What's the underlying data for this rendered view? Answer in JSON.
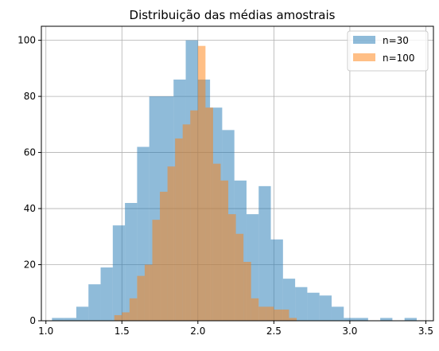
{
  "chart_data": {
    "type": "histogram",
    "title": "Distribuição das médias amostrais",
    "xlabel": "",
    "ylabel": "",
    "xlim": [
      0.97,
      3.55
    ],
    "ylim": [
      0,
      105
    ],
    "xticks": [
      1.0,
      1.5,
      2.0,
      2.5,
      3.0,
      3.5
    ],
    "xtick_labels": [
      "1.0",
      "1.5",
      "2.0",
      "2.5",
      "3.0",
      "3.5"
    ],
    "yticks": [
      0,
      20,
      40,
      60,
      80,
      100
    ],
    "ytick_labels": [
      "0",
      "20",
      "40",
      "60",
      "80",
      "100"
    ],
    "grid": true,
    "legend_position": "top-right",
    "series": [
      {
        "name": "n=30",
        "color": "#1f77b4",
        "alpha": 0.5,
        "bin_edges": [
          1.04,
          1.12,
          1.2,
          1.28,
          1.36,
          1.44,
          1.52,
          1.6,
          1.68,
          1.76,
          1.84,
          1.92,
          2.0,
          2.08,
          2.16,
          2.24,
          2.32,
          2.4,
          2.48,
          2.56,
          2.64,
          2.72,
          2.8,
          2.88,
          2.96,
          3.04,
          3.12,
          3.2,
          3.28,
          3.36,
          3.44,
          3.52
        ],
        "values": [
          1,
          1,
          5,
          13,
          19,
          34,
          42,
          62,
          80,
          80,
          86,
          100,
          86,
          76,
          68,
          50,
          38,
          48,
          29,
          15,
          12,
          10,
          9,
          5,
          1,
          1,
          0,
          1,
          0,
          1,
          0
        ]
      },
      {
        "name": "n=100",
        "color": "#ff7f0e",
        "alpha": 0.5,
        "bin_edges": [
          1.45,
          1.5,
          1.55,
          1.6,
          1.65,
          1.7,
          1.75,
          1.8,
          1.85,
          1.9,
          1.95,
          2.0,
          2.05,
          2.1,
          2.15,
          2.2,
          2.25,
          2.3,
          2.35,
          2.4,
          2.45,
          2.5,
          2.55,
          2.6,
          2.65
        ],
        "values": [
          2,
          3,
          8,
          16,
          20,
          36,
          46,
          55,
          65,
          70,
          75,
          98,
          76,
          56,
          50,
          38,
          31,
          21,
          8,
          5,
          5,
          4,
          4,
          1
        ]
      }
    ]
  }
}
